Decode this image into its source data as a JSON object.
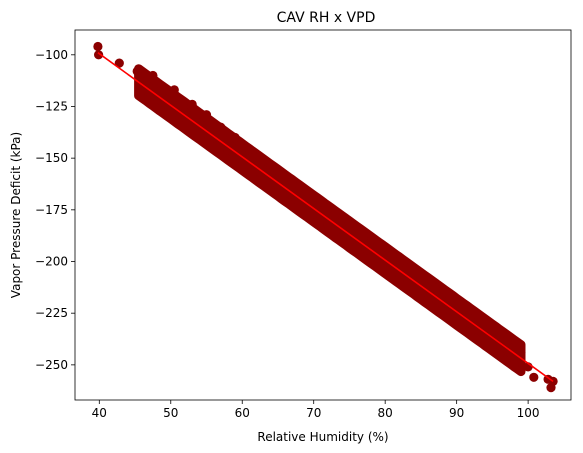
{
  "chart_data": {
    "type": "scatter",
    "title": "CAV RH x VPD",
    "xlabel": "Relative Humidity (%)",
    "ylabel": "Vapor Pressure Deficit (kPa)",
    "xlim": [
      36.6,
      106.0
    ],
    "ylim": [
      -267.0,
      -88.0
    ],
    "xticks": [
      40,
      50,
      60,
      70,
      80,
      90,
      100
    ],
    "yticks": [
      -100,
      -125,
      -150,
      -175,
      -200,
      -225,
      -250
    ],
    "grid": false,
    "legend": "none",
    "marker_color": "#8b0000",
    "trend_color": "#ff0000",
    "trend_line": {
      "x": [
        39.8,
        103.5
      ],
      "y": [
        -99.0,
        -258.0
      ]
    },
    "points": [
      {
        "x": 39.8,
        "y": -96
      },
      {
        "x": 39.9,
        "y": -100
      },
      {
        "x": 42.8,
        "y": -104
      },
      {
        "x": 45.3,
        "y": -108
      },
      {
        "x": 46.0,
        "y": -115
      },
      {
        "x": 47.5,
        "y": -110
      },
      {
        "x": 48.0,
        "y": -118
      },
      {
        "x": 49.5,
        "y": -122
      },
      {
        "x": 50.5,
        "y": -117
      },
      {
        "x": 52.0,
        "y": -128
      },
      {
        "x": 53.0,
        "y": -124
      },
      {
        "x": 54.0,
        "y": -133
      },
      {
        "x": 55.0,
        "y": -129
      },
      {
        "x": 56.0,
        "y": -140
      },
      {
        "x": 57.0,
        "y": -135
      },
      {
        "x": 58.0,
        "y": -146
      },
      {
        "x": 59.0,
        "y": -140
      },
      {
        "x": 60.0,
        "y": -150
      },
      {
        "x": 61.0,
        "y": -146
      },
      {
        "x": 62.0,
        "y": -156
      },
      {
        "x": 63.0,
        "y": -151
      },
      {
        "x": 64.0,
        "y": -162
      },
      {
        "x": 65.0,
        "y": -156
      },
      {
        "x": 66.0,
        "y": -167
      },
      {
        "x": 67.0,
        "y": -161
      },
      {
        "x": 68.0,
        "y": -172
      },
      {
        "x": 69.0,
        "y": -166
      },
      {
        "x": 70.0,
        "y": -177
      },
      {
        "x": 71.0,
        "y": -171
      },
      {
        "x": 72.0,
        "y": -182
      },
      {
        "x": 73.0,
        "y": -177
      },
      {
        "x": 74.0,
        "y": -188
      },
      {
        "x": 75.0,
        "y": -182
      },
      {
        "x": 76.0,
        "y": -193
      },
      {
        "x": 77.0,
        "y": -187
      },
      {
        "x": 78.0,
        "y": -198
      },
      {
        "x": 79.0,
        "y": -192
      },
      {
        "x": 80.0,
        "y": -203
      },
      {
        "x": 81.0,
        "y": -197
      },
      {
        "x": 82.0,
        "y": -208
      },
      {
        "x": 83.0,
        "y": -203
      },
      {
        "x": 84.0,
        "y": -214
      },
      {
        "x": 85.0,
        "y": -208
      },
      {
        "x": 86.0,
        "y": -219
      },
      {
        "x": 87.0,
        "y": -213
      },
      {
        "x": 88.0,
        "y": -224
      },
      {
        "x": 89.0,
        "y": -218
      },
      {
        "x": 90.0,
        "y": -229
      },
      {
        "x": 91.0,
        "y": -223
      },
      {
        "x": 92.0,
        "y": -234
      },
      {
        "x": 93.0,
        "y": -229
      },
      {
        "x": 94.0,
        "y": -240
      },
      {
        "x": 95.0,
        "y": -234
      },
      {
        "x": 96.0,
        "y": -245
      },
      {
        "x": 97.0,
        "y": -239
      },
      {
        "x": 98.0,
        "y": -250
      },
      {
        "x": 99.0,
        "y": -244
      },
      {
        "x": 100.0,
        "y": -251
      },
      {
        "x": 100.8,
        "y": -256
      },
      {
        "x": 102.8,
        "y": -257
      },
      {
        "x": 103.2,
        "y": -261
      },
      {
        "x": 103.5,
        "y": -258
      }
    ]
  }
}
